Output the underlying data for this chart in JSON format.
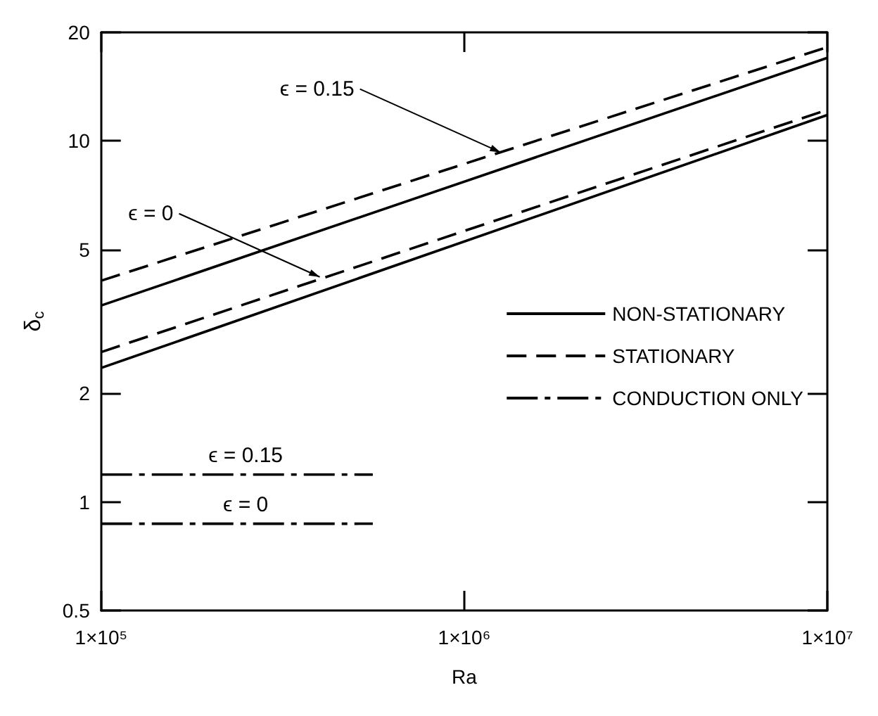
{
  "chart_data": {
    "type": "line",
    "xlabel": "Ra",
    "ylabel": "δ$_{c}$",
    "log": "xy",
    "grid": false,
    "legend": "right",
    "xlim": [
      100000,
      10000000
    ],
    "xticks": [
      {
        "value": 100000,
        "label": "1×10⁵"
      },
      {
        "value": 1000000,
        "label": "1×10⁶"
      },
      {
        "value": 10000000,
        "label": "1×10⁷"
      }
    ],
    "ylim": [
      0.5,
      20
    ],
    "yticks": [
      0.5,
      1,
      2,
      5,
      10,
      20
    ],
    "marker": "none",
    "series": [
      {
        "name": "NON-STATIONARY",
        "color": "#000000",
        "line_style": "solid",
        "x": [
          100000,
          10000000
        ],
        "values": [
          3.5,
          17
        ]
      },
      {
        "color": "#000000",
        "line_style": "solid",
        "x": [
          100000,
          10000000
        ],
        "values": [
          2.35,
          11.8
        ]
      },
      {
        "name": "STATIONARY",
        "color": "#000000",
        "line_style": "dashed",
        "x": [
          100000,
          10000000
        ],
        "values": [
          4.1,
          18.2
        ]
      },
      {
        "color": "#000000",
        "line_style": "dashed",
        "x": [
          100000,
          10000000
        ],
        "values": [
          2.6,
          12.2
        ]
      },
      {
        "name": "CONDUCTION ONLY",
        "color": "#000000",
        "line_style": "dashdot",
        "x": [
          100000,
          560000
        ],
        "values": [
          1.19,
          1.19
        ]
      },
      {
        "color": "#000000",
        "line_style": "dashdot",
        "x": [
          100000,
          560000
        ],
        "values": [
          0.87,
          0.87
        ]
      }
    ],
    "annotations": [
      {
        "text": "ϵ = 0.15",
        "x": 1260000,
        "y": 9.3
      },
      {
        "text": "ϵ = 0",
        "x": 400000,
        "y": 4.2
      },
      {
        "text": "ϵ = 0.15",
        "x": 250000,
        "y": 1.19
      },
      {
        "text": "ϵ = 0",
        "x": 250000,
        "y": 0.87
      }
    ]
  }
}
